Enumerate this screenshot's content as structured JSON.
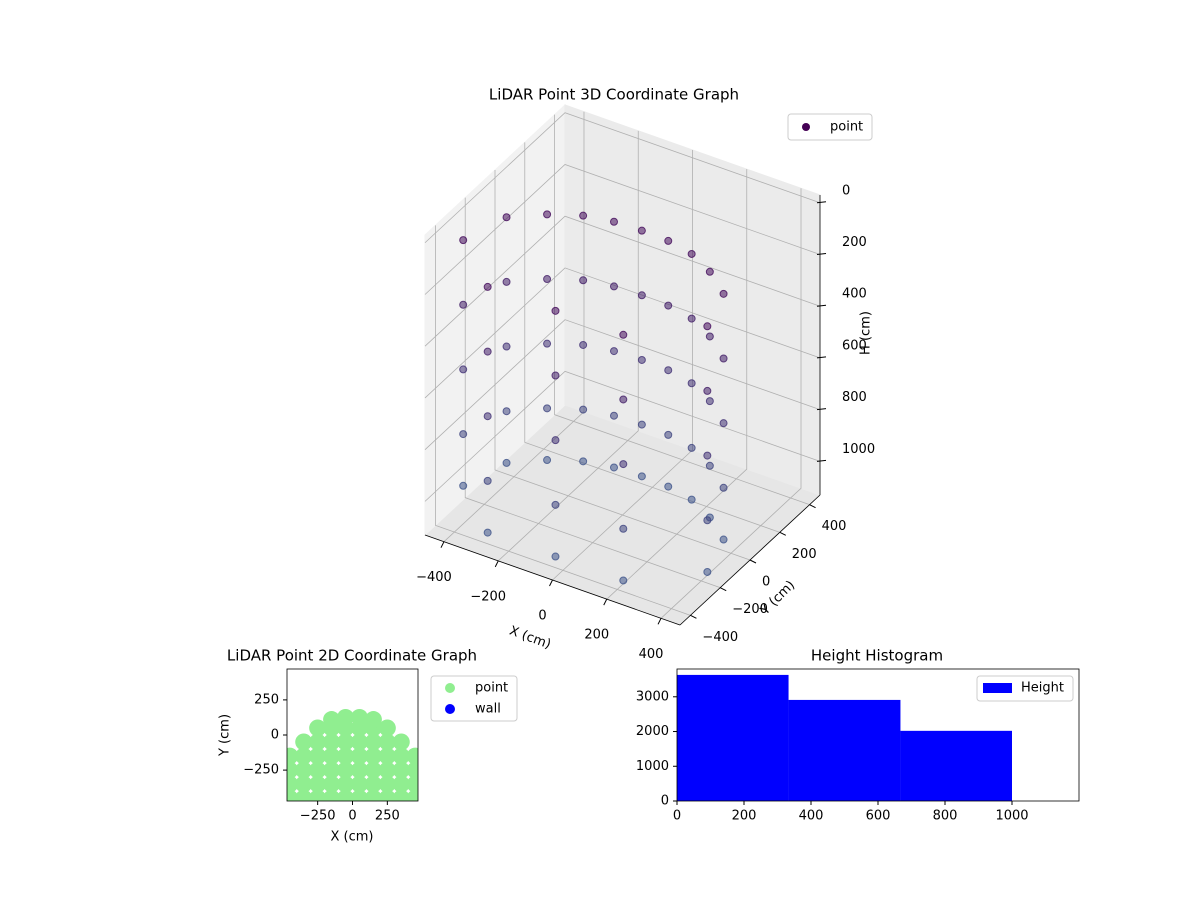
{
  "chart_data": [
    {
      "type": "scatter3d",
      "title": "LiDAR Point 3D Coordinate Graph",
      "x_label": "X (cm)",
      "y_label": "Y (cm)",
      "z_label": "H (cm)",
      "xlim": [
        -470,
        470
      ],
      "ylim": [
        -470,
        470
      ],
      "zlim": [
        1130,
        -30
      ],
      "xticks": [
        {
          "value": -400,
          "label": "−400"
        },
        {
          "value": -200,
          "label": "−200"
        },
        0,
        200,
        400
      ],
      "yticks": [
        {
          "value": -400,
          "label": "−400"
        },
        {
          "value": -200,
          "label": "−200"
        },
        0,
        200,
        400
      ],
      "zticks": [
        0,
        200,
        400,
        600,
        800,
        1000
      ],
      "grid": true,
      "legend": "upper right",
      "color_range": [
        "#440154",
        "#3e5a8e"
      ],
      "series": [
        {
          "name": "point",
          "color": "#440154",
          "x": [
            -450,
            -450,
            -450,
            -450,
            -450,
            -400,
            -400,
            -400,
            -400,
            -400,
            -300,
            -300,
            -300,
            -300,
            -300,
            -200,
            -200,
            -200,
            -200,
            -200,
            -100,
            -100,
            -100,
            -100,
            -100,
            0,
            0,
            0,
            0,
            0,
            100,
            100,
            100,
            100,
            100,
            200,
            200,
            200,
            200,
            200,
            300,
            300,
            300,
            300,
            300,
            400,
            400,
            400,
            400,
            400,
            450,
            450,
            450,
            450,
            450,
            -250,
            -250,
            -250,
            -250,
            -250,
            0,
            0,
            0,
            0,
            0,
            250,
            250,
            250,
            250,
            250
          ],
          "y": [
            -250,
            -250,
            -250,
            -250,
            -250,
            -50,
            -50,
            -50,
            -50,
            -50,
            40,
            40,
            40,
            40,
            40,
            100,
            100,
            100,
            100,
            100,
            125,
            125,
            125,
            125,
            125,
            130,
            130,
            130,
            130,
            130,
            125,
            125,
            125,
            125,
            125,
            100,
            100,
            100,
            100,
            100,
            40,
            40,
            40,
            40,
            40,
            -50,
            -50,
            -50,
            -50,
            -50,
            -250,
            -250,
            -250,
            -250,
            -250,
            -450,
            -450,
            -450,
            -450,
            -450,
            -450,
            -450,
            -450,
            -450,
            -450,
            -450,
            -450,
            -450,
            -450,
            -450
          ],
          "z": [
            100,
            350,
            600,
            850,
            1050,
            100,
            350,
            600,
            850,
            1050,
            100,
            350,
            600,
            850,
            1050,
            100,
            350,
            600,
            850,
            1050,
            100,
            350,
            600,
            850,
            1050,
            100,
            350,
            600,
            850,
            1050,
            100,
            350,
            600,
            850,
            1050,
            100,
            350,
            600,
            850,
            1050,
            100,
            350,
            600,
            850,
            1050,
            100,
            350,
            600,
            850,
            1050,
            100,
            350,
            600,
            850,
            1050,
            100,
            350,
            600,
            850,
            1050,
            100,
            350,
            600,
            850,
            1050,
            100,
            350,
            600,
            850,
            1050
          ]
        }
      ]
    },
    {
      "type": "scatter",
      "title": "LiDAR Point 2D Coordinate Graph",
      "x_label": "X (cm)",
      "y_label": "Y (cm)",
      "xlim": [
        -470,
        470
      ],
      "ylim": [
        -470,
        470
      ],
      "xticks": [
        {
          "value": -250,
          "label": "−250"
        },
        0,
        250
      ],
      "yticks": [
        {
          "value": -250,
          "label": "−250"
        },
        0,
        250
      ],
      "legend": "outside upper right",
      "series": [
        {
          "name": "point",
          "color": "#90ee90",
          "x": [
            -450,
            -450,
            -450,
            -450,
            -350,
            -350,
            -350,
            -350,
            -350,
            -250,
            -250,
            -250,
            -250,
            -250,
            -250,
            -150,
            -150,
            -150,
            -150,
            -150,
            -150,
            -150,
            -50,
            -50,
            -50,
            -50,
            -50,
            -50,
            -50,
            50,
            50,
            50,
            50,
            50,
            50,
            50,
            150,
            150,
            150,
            150,
            150,
            150,
            150,
            250,
            250,
            250,
            250,
            250,
            250,
            350,
            350,
            350,
            350,
            350,
            450,
            450,
            450,
            450
          ],
          "y": [
            -450,
            -350,
            -250,
            -150,
            -450,
            -350,
            -250,
            -150,
            -50,
            -450,
            -350,
            -250,
            -150,
            -50,
            50,
            -450,
            -350,
            -250,
            -150,
            -50,
            50,
            110,
            -450,
            -350,
            -250,
            -150,
            -50,
            50,
            125,
            -450,
            -350,
            -250,
            -150,
            -50,
            50,
            125,
            -450,
            -350,
            -250,
            -150,
            -50,
            50,
            110,
            -450,
            -350,
            -250,
            -150,
            -50,
            50,
            -450,
            -350,
            -250,
            -150,
            -50,
            -450,
            -350,
            -250,
            -150
          ]
        },
        {
          "name": "wall",
          "color": "#0000ff",
          "x": [],
          "y": []
        }
      ]
    },
    {
      "type": "histogram",
      "title": "Height Histogram",
      "xlim": [
        0,
        1200
      ],
      "ylim": [
        0,
        3800
      ],
      "xticks": [
        0,
        200,
        400,
        600,
        800,
        1000
      ],
      "yticks": [
        0,
        1000,
        2000,
        3000
      ],
      "legend": "upper right",
      "bins": [
        0,
        333,
        667,
        1000
      ],
      "series": [
        {
          "name": "Height",
          "color": "#0000ff",
          "values": [
            3630,
            2910,
            2020
          ]
        }
      ]
    }
  ]
}
